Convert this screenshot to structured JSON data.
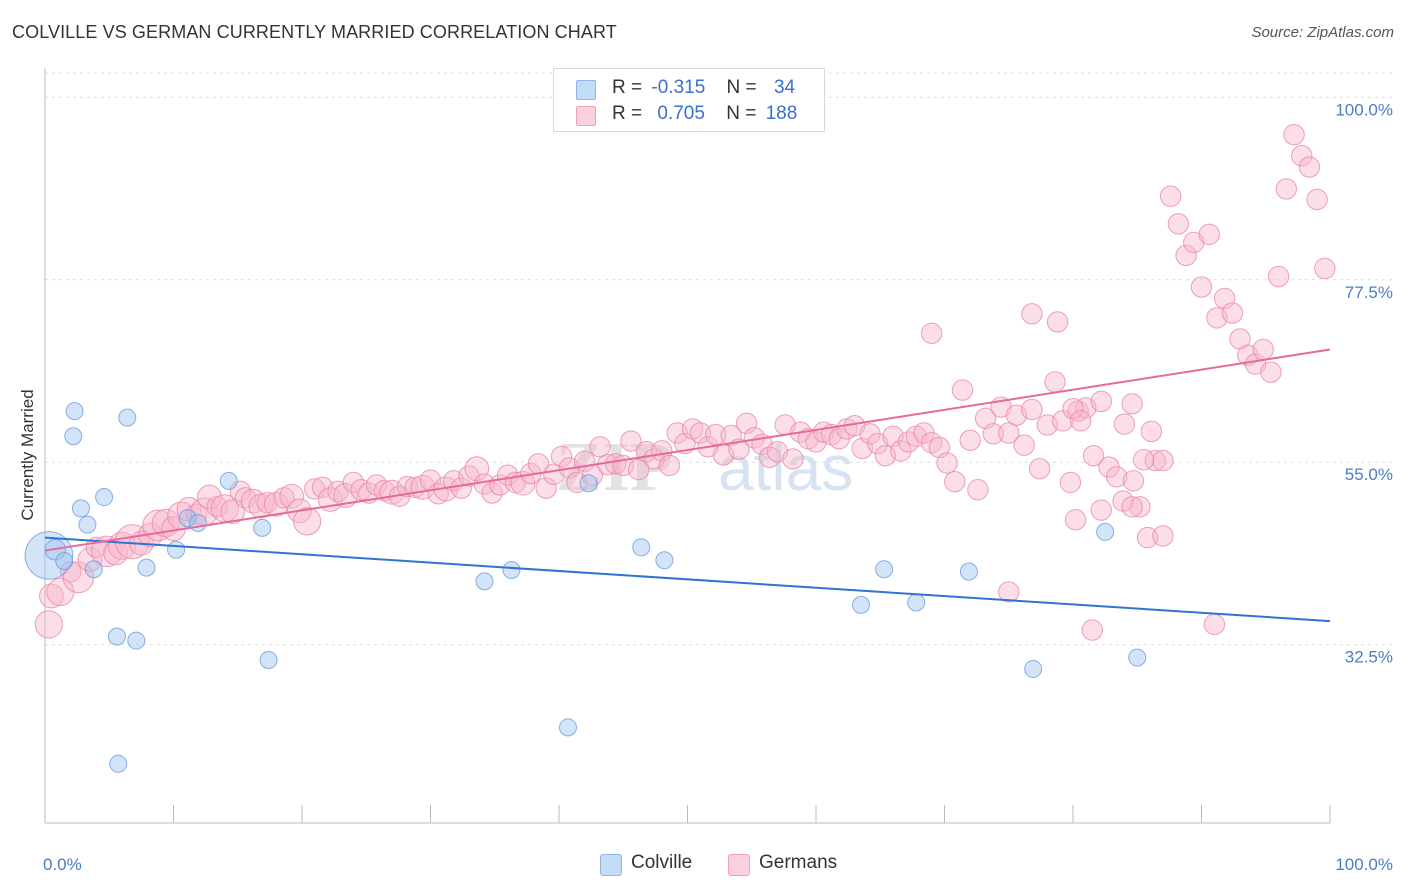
{
  "header": {
    "title": "COLVILLE VS GERMAN CURRENTLY MARRIED CORRELATION CHART",
    "source": "Source: ZipAtlas.com"
  },
  "watermark": {
    "zip": "ZIP",
    "atlas": "atlas"
  },
  "legend_top": {
    "rows": [
      {
        "r_label": "R =",
        "r_value": "-0.315",
        "n_label": "N =",
        "n_value": "34",
        "color": "#9fc3f0"
      },
      {
        "r_label": "R =",
        "r_value": "0.705",
        "n_label": "N =",
        "n_value": "188",
        "color": "#f7b6cb"
      }
    ]
  },
  "legend_bottom": {
    "items": [
      "Colville",
      "Germans"
    ]
  },
  "chart_data": {
    "type": "scatter",
    "title": "COLVILLE VS GERMAN CURRENTLY MARRIED CORRELATION CHART",
    "xlabel": "",
    "ylabel": "Currently Married",
    "xlim": [
      0,
      100
    ],
    "ylim": [
      10.5,
      103
    ],
    "x_tick_labels": [
      "0.0%",
      "100.0%"
    ],
    "y_ticks": [
      {
        "value": 100,
        "label": "100.0%"
      },
      {
        "value": 77.5,
        "label": "77.5%"
      },
      {
        "value": 55,
        "label": "55.0%"
      },
      {
        "value": 32.5,
        "label": "32.5%"
      }
    ],
    "grid": "horizontal dashed",
    "legend_position": "bottom-center",
    "series": [
      {
        "name": "Colville",
        "color": "#9fc3f0",
        "edge": "#6a9de0",
        "trend": {
          "x": [
            0,
            100
          ],
          "y": [
            45.7,
            35.4
          ]
        },
        "points": [
          [
            0.3,
            43.5,
            28
          ],
          [
            0.8,
            44.2,
            12
          ],
          [
            1.5,
            42.8,
            10
          ],
          [
            2.2,
            58.2,
            10
          ],
          [
            2.3,
            61.3,
            10
          ],
          [
            2.8,
            49.3,
            10
          ],
          [
            3.3,
            47.3,
            10
          ],
          [
            3.8,
            41.8,
            10
          ],
          [
            4.6,
            50.7,
            10
          ],
          [
            5.6,
            33.5,
            10
          ],
          [
            5.7,
            17.8,
            10
          ],
          [
            6.4,
            60.5,
            10
          ],
          [
            7.1,
            33,
            10
          ],
          [
            7.9,
            42,
            10
          ],
          [
            10.2,
            44.2,
            10
          ],
          [
            11.1,
            48.1,
            10
          ],
          [
            11.9,
            47.5,
            10
          ],
          [
            14.3,
            52.7,
            10
          ],
          [
            16.9,
            46.9,
            10
          ],
          [
            17.4,
            30.6,
            10
          ],
          [
            34.2,
            40.3,
            10
          ],
          [
            36.3,
            41.7,
            10
          ],
          [
            40.7,
            22.3,
            10
          ],
          [
            42.3,
            52.4,
            10
          ],
          [
            46.4,
            44.5,
            10
          ],
          [
            48.2,
            42.9,
            10
          ],
          [
            63.5,
            37.4,
            10
          ],
          [
            65.3,
            41.8,
            10
          ],
          [
            67.8,
            37.7,
            10
          ],
          [
            71.9,
            41.5,
            10
          ],
          [
            76.9,
            29.5,
            10
          ],
          [
            82.5,
            46.4,
            10
          ],
          [
            85,
            30.9,
            10
          ]
        ]
      },
      {
        "name": "Germans",
        "color": "#f7b6cb",
        "edge": "#e88aa8",
        "trend": {
          "x": [
            0,
            100
          ],
          "y": [
            44.1,
            68.9
          ]
        },
        "points": [
          [
            0.3,
            35,
            16
          ],
          [
            0.5,
            38.5,
            14
          ],
          [
            1.2,
            39,
            16
          ],
          [
            2,
            41.5,
            12
          ],
          [
            2.6,
            40.8,
            18
          ],
          [
            3.5,
            43,
            14
          ],
          [
            4,
            44.5,
            12
          ],
          [
            4.8,
            44,
            18
          ],
          [
            5.5,
            43.8,
            14
          ],
          [
            6,
            44.7,
            16
          ],
          [
            6.8,
            45.2,
            20
          ],
          [
            7.5,
            45,
            14
          ],
          [
            8.2,
            46,
            14
          ],
          [
            8.8,
            47.2,
            18
          ],
          [
            9.4,
            47.5,
            16
          ],
          [
            10,
            46.8,
            14
          ],
          [
            10.6,
            48.4,
            16
          ],
          [
            11.2,
            49.2,
            14
          ],
          [
            11.8,
            48.6,
            12
          ],
          [
            12.4,
            48.9,
            16
          ],
          [
            12.8,
            50.7,
            14
          ],
          [
            13.4,
            49.5,
            12
          ],
          [
            14,
            49.3,
            16
          ],
          [
            14.6,
            48.9,
            14
          ],
          [
            15.2,
            51.4,
            12
          ],
          [
            15.6,
            50.6,
            12
          ],
          [
            16.2,
            50.2,
            14
          ],
          [
            16.8,
            49.6,
            14
          ],
          [
            17.3,
            50,
            12
          ],
          [
            18,
            49.8,
            14
          ],
          [
            18.6,
            50.6,
            12
          ],
          [
            19.2,
            50.8,
            14
          ],
          [
            19.8,
            49,
            14
          ],
          [
            20.4,
            47.7,
            16
          ],
          [
            21,
            51.7,
            12
          ],
          [
            21.6,
            51.9,
            12
          ],
          [
            22.2,
            50.4,
            14
          ],
          [
            22.8,
            51.4,
            12
          ],
          [
            23.4,
            50.9,
            14
          ],
          [
            24,
            52.5,
            12
          ],
          [
            24.6,
            51.6,
            12
          ],
          [
            25.2,
            51.2,
            12
          ],
          [
            25.8,
            52.2,
            12
          ],
          [
            26.4,
            51.5,
            12
          ],
          [
            27,
            51.3,
            14
          ],
          [
            27.6,
            50.8,
            12
          ],
          [
            28.2,
            52,
            12
          ],
          [
            28.8,
            51.9,
            12
          ],
          [
            29.4,
            51.9,
            14
          ],
          [
            30,
            52.8,
            12
          ],
          [
            30.6,
            51.1,
            12
          ],
          [
            31.2,
            51.7,
            14
          ],
          [
            31.8,
            52.7,
            12
          ],
          [
            32.4,
            51.8,
            12
          ],
          [
            33,
            53.3,
            12
          ],
          [
            33.6,
            54.2,
            14
          ],
          [
            34.2,
            52.3,
            12
          ],
          [
            34.8,
            51.2,
            12
          ],
          [
            35.4,
            52.2,
            12
          ],
          [
            36,
            53.4,
            12
          ],
          [
            36.6,
            52.5,
            12
          ],
          [
            37.2,
            52.4,
            14
          ],
          [
            37.8,
            53.6,
            12
          ],
          [
            38.4,
            54.8,
            12
          ],
          [
            39,
            51.8,
            12
          ],
          [
            39.6,
            53.5,
            12
          ],
          [
            40.2,
            55.7,
            12
          ],
          [
            40.8,
            54.3,
            12
          ],
          [
            41.4,
            52.5,
            12
          ],
          [
            42,
            55.1,
            12
          ],
          [
            42.6,
            53.4,
            12
          ],
          [
            43.2,
            56.9,
            12
          ],
          [
            43.8,
            54.7,
            12
          ],
          [
            44.4,
            54.8,
            12
          ],
          [
            45,
            54.6,
            12
          ],
          [
            45.6,
            57.6,
            12
          ],
          [
            46.2,
            54.1,
            12
          ],
          [
            46.8,
            56.3,
            12
          ],
          [
            47.4,
            55.4,
            12
          ],
          [
            48,
            56.4,
            12
          ],
          [
            48.6,
            54.6,
            12
          ],
          [
            49.2,
            58.6,
            12
          ],
          [
            49.8,
            57.3,
            12
          ],
          [
            50.4,
            59.1,
            12
          ],
          [
            51,
            58.6,
            12
          ],
          [
            51.6,
            56.9,
            12
          ],
          [
            52.2,
            58.4,
            12
          ],
          [
            52.8,
            55.9,
            12
          ],
          [
            53.4,
            58.3,
            12
          ],
          [
            54,
            56.6,
            12
          ],
          [
            54.6,
            59.8,
            12
          ],
          [
            55.2,
            58,
            12
          ],
          [
            55.8,
            57.2,
            12
          ],
          [
            56.4,
            55.6,
            12
          ],
          [
            57,
            56.3,
            12
          ],
          [
            57.6,
            59.6,
            12
          ],
          [
            58.2,
            55.4,
            12
          ],
          [
            58.8,
            58.7,
            12
          ],
          [
            59.4,
            57.9,
            12
          ],
          [
            60,
            57.5,
            12
          ],
          [
            60.6,
            58.7,
            12
          ],
          [
            61.2,
            58.4,
            12
          ],
          [
            61.8,
            57.9,
            12
          ],
          [
            62.4,
            59.1,
            12
          ],
          [
            63,
            59.5,
            12
          ],
          [
            63.6,
            56.7,
            12
          ],
          [
            64.2,
            58.5,
            12
          ],
          [
            64.8,
            57.3,
            12
          ],
          [
            65.4,
            55.8,
            12
          ],
          [
            66,
            58.2,
            12
          ],
          [
            66.6,
            56.4,
            12
          ],
          [
            67.2,
            57.5,
            12
          ],
          [
            67.8,
            58.2,
            12
          ],
          [
            68.4,
            58.6,
            12
          ],
          [
            69,
            57.4,
            12
          ],
          [
            69.6,
            56.8,
            12
          ],
          [
            70.2,
            54.9,
            12
          ],
          [
            70.8,
            52.6,
            12
          ],
          [
            71.4,
            63.9,
            12
          ],
          [
            72,
            57.7,
            12
          ],
          [
            72.6,
            51.6,
            12
          ],
          [
            73.2,
            60.4,
            12
          ],
          [
            73.8,
            58.5,
            12
          ],
          [
            74.4,
            61.8,
            12
          ],
          [
            75,
            58.6,
            12
          ],
          [
            75.6,
            60.8,
            12
          ],
          [
            76.2,
            57.1,
            12
          ],
          [
            76.8,
            61.5,
            12
          ],
          [
            77.4,
            54.2,
            12
          ],
          [
            78,
            59.6,
            12
          ],
          [
            78.6,
            64.9,
            12
          ],
          [
            79.2,
            60.1,
            12
          ],
          [
            79.8,
            52.5,
            12
          ],
          [
            80.4,
            61.3,
            12
          ],
          [
            81,
            61.7,
            12
          ],
          [
            81.6,
            55.8,
            12
          ],
          [
            82.2,
            62.5,
            12
          ],
          [
            82.8,
            54.4,
            12
          ],
          [
            83.4,
            53.2,
            12
          ],
          [
            84,
            59.7,
            12
          ],
          [
            84.6,
            62.2,
            12
          ],
          [
            85.2,
            49.5,
            12
          ],
          [
            85.8,
            45.7,
            12
          ],
          [
            86.4,
            55.2,
            12
          ],
          [
            87,
            45.9,
            12
          ],
          [
            87.6,
            87.8,
            12
          ],
          [
            88.2,
            84.4,
            12
          ],
          [
            88.8,
            80.5,
            12
          ],
          [
            89.4,
            82.1,
            12
          ],
          [
            90,
            76.6,
            12
          ],
          [
            90.6,
            83.1,
            12
          ],
          [
            91.2,
            72.8,
            12
          ],
          [
            91.8,
            75.2,
            12
          ],
          [
            92.4,
            73.4,
            12
          ],
          [
            93,
            70.2,
            12
          ],
          [
            93.6,
            68.2,
            12
          ],
          [
            94.2,
            67.1,
            12
          ],
          [
            94.8,
            68.9,
            12
          ],
          [
            95.4,
            66.1,
            12
          ],
          [
            96,
            77.9,
            12
          ],
          [
            96.6,
            88.7,
            12
          ],
          [
            97.2,
            95.4,
            12
          ],
          [
            97.8,
            92.8,
            12
          ],
          [
            98.4,
            91.4,
            12
          ],
          [
            99,
            87.4,
            12
          ],
          [
            99.6,
            78.9,
            12
          ],
          [
            69,
            70.9,
            12
          ],
          [
            76.8,
            73.3,
            12
          ],
          [
            78.8,
            72.3,
            12
          ],
          [
            80,
            61.6,
            12
          ],
          [
            80.6,
            60.1,
            12
          ],
          [
            84.7,
            52.7,
            12
          ],
          [
            87,
            55.2,
            12
          ],
          [
            80.2,
            47.9,
            12
          ],
          [
            82.2,
            49.1,
            12
          ],
          [
            83.9,
            50.2,
            12
          ],
          [
            84.6,
            49.5,
            12
          ],
          [
            85.5,
            55.3,
            12
          ],
          [
            86.1,
            58.8,
            12
          ],
          [
            81.5,
            34.3,
            12
          ],
          [
            91,
            35,
            12
          ],
          [
            75,
            39,
            12
          ]
        ]
      }
    ]
  }
}
